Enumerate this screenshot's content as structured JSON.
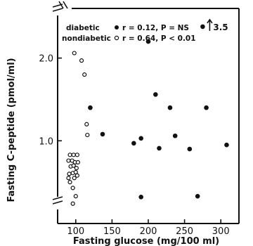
{
  "chart_data": {
    "type": "scatter",
    "xlabel": "Fasting glucose (mg/100 ml)",
    "ylabel": "Fasting C-peptide (pmol/ml)",
    "xlim": [
      75,
      325
    ],
    "ylim": [
      0,
      2.6
    ],
    "x_ticks": [
      100,
      150,
      200,
      250,
      300
    ],
    "y_ticks": [
      1.0,
      2.0
    ],
    "y_tick_labels": [
      "1.0",
      "2.0"
    ],
    "axis_breaks": [
      "x",
      "y"
    ],
    "grid": false,
    "legend_position": "top-left",
    "series": [
      {
        "name": "diabetic",
        "marker": "filled-circle",
        "stat_label": "r = 0.12, P = NS",
        "points": [
          {
            "x": 200,
            "y": 2.2
          },
          {
            "x": 120,
            "y": 1.4
          },
          {
            "x": 137,
            "y": 1.08
          },
          {
            "x": 180,
            "y": 0.97
          },
          {
            "x": 190,
            "y": 1.03
          },
          {
            "x": 190,
            "y": 0.32
          },
          {
            "x": 210,
            "y": 1.56
          },
          {
            "x": 215,
            "y": 0.91
          },
          {
            "x": 230,
            "y": 1.4
          },
          {
            "x": 237,
            "y": 1.06
          },
          {
            "x": 257,
            "y": 0.9
          },
          {
            "x": 268,
            "y": 0.33
          },
          {
            "x": 275,
            "y": 2.38
          },
          {
            "x": 280,
            "y": 1.4
          },
          {
            "x": 308,
            "y": 0.95
          }
        ]
      },
      {
        "name": "nondiabetic",
        "marker": "open-circle",
        "stat_label": "r = 0.64, P < 0.01",
        "points": [
          {
            "x": 98,
            "y": 2.06
          },
          {
            "x": 108,
            "y": 1.97
          },
          {
            "x": 112,
            "y": 1.8
          },
          {
            "x": 115,
            "y": 1.2
          },
          {
            "x": 116,
            "y": 1.07
          },
          {
            "x": 92,
            "y": 0.83
          },
          {
            "x": 97,
            "y": 0.83
          },
          {
            "x": 102,
            "y": 0.83
          },
          {
            "x": 90,
            "y": 0.76
          },
          {
            "x": 95,
            "y": 0.76
          },
          {
            "x": 99,
            "y": 0.74
          },
          {
            "x": 103,
            "y": 0.74
          },
          {
            "x": 93,
            "y": 0.69
          },
          {
            "x": 97,
            "y": 0.7
          },
          {
            "x": 101,
            "y": 0.67
          },
          {
            "x": 91,
            "y": 0.6
          },
          {
            "x": 96,
            "y": 0.61
          },
          {
            "x": 100,
            "y": 0.62
          },
          {
            "x": 90,
            "y": 0.55
          },
          {
            "x": 98,
            "y": 0.55
          },
          {
            "x": 102,
            "y": 0.58
          },
          {
            "x": 92,
            "y": 0.5
          },
          {
            "x": 96,
            "y": 0.43
          },
          {
            "x": 100,
            "y": 0.33
          },
          {
            "x": 96,
            "y": 0.24
          }
        ]
      }
    ],
    "annotation": {
      "text": "3.5",
      "arrow": "up",
      "x": 275,
      "y": 2.38
    }
  }
}
